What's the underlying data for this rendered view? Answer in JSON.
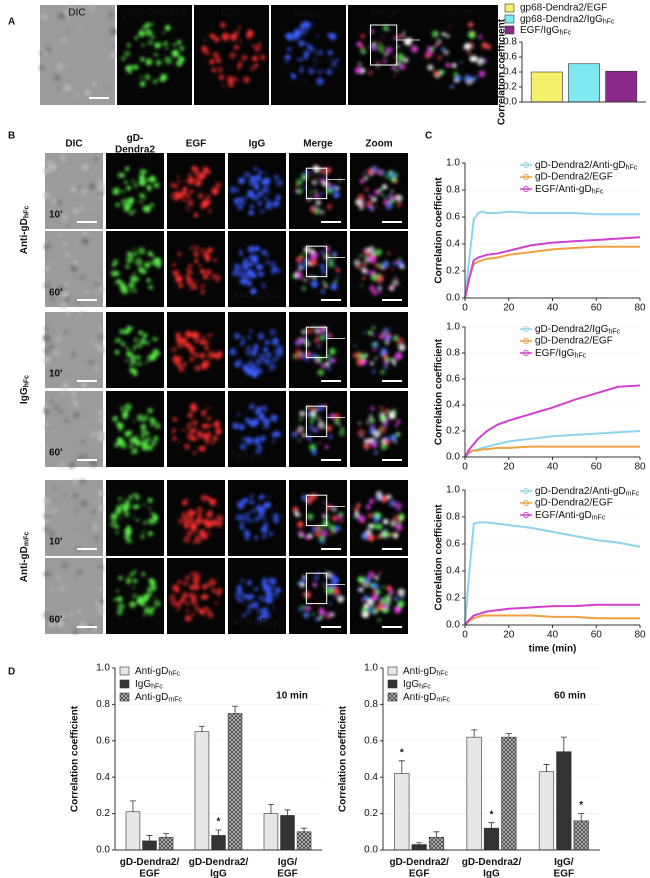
{
  "panel_labels": [
    "A",
    "B",
    "C",
    "D"
  ],
  "figure_a": {
    "image_labels": [
      "DIC",
      "gp68-Dendra2",
      "EGF",
      {
        "text": "IgG",
        "sub": "hFc"
      },
      "Merge",
      "Zoom"
    ]
  },
  "figure_b": {
    "column_labels": [
      "DIC",
      [
        "gD-",
        "Dendra2"
      ],
      "EGF",
      "IgG",
      "Merge",
      "Zoom"
    ],
    "groups": [
      {
        "label": {
          "text": "Anti-gD",
          "sub": "hFc"
        },
        "times": [
          "10'",
          "60'"
        ],
        "inset": {
          "text": "Anti-gD",
          "sub": "hFc"
        }
      },
      {
        "label": {
          "text": "IgG",
          "sub": "hFc"
        },
        "times": [
          "10'",
          "60'"
        ],
        "inset": {
          "text": "IgG",
          "sub": "hFc"
        }
      },
      {
        "label": {
          "text": "Anti-gD",
          "sub": "mFc"
        },
        "times": [
          "10'",
          "60'"
        ],
        "inset": {
          "text": "Anti-gD",
          "sub": "mFc"
        }
      }
    ]
  },
  "chart_data": [
    {
      "type": "bar",
      "ylabel": "Correlation coefficient",
      "ylim": [
        0,
        0.8
      ],
      "yticks": [
        {
          "value": 0,
          "label": "0.0"
        },
        0.2,
        0.4,
        0.6,
        0.8
      ],
      "series": [
        {
          "name": "gp68-Dendra2/EGF",
          "color": "#f5f06a",
          "values": [
            0.4
          ]
        },
        {
          "name": {
            "text": "gp68-Dendra2/IgG",
            "sub": "hFc"
          },
          "color": "#7fe8f0",
          "values": [
            0.51
          ]
        },
        {
          "name": {
            "text": "EGF/IgG",
            "sub": "hFc"
          },
          "color": "#8a2a8a",
          "values": [
            0.41
          ]
        }
      ]
    },
    {
      "type": "line",
      "ylabel": "Correlation coefficient",
      "xlim": [
        0,
        80
      ],
      "xticks": [
        0,
        20,
        40,
        60,
        80
      ],
      "ylim": [
        0,
        1
      ],
      "yticks": [
        {
          "value": 0,
          "label": "0.0"
        },
        0.2,
        0.4,
        0.6,
        0.8,
        {
          "value": 1,
          "label": "1.0"
        }
      ],
      "grid": true,
      "x": [
        0,
        2,
        4,
        6,
        8,
        10,
        15,
        20,
        30,
        40,
        50,
        60,
        70,
        80
      ],
      "series": [
        {
          "name": {
            "text": "gD-Dendra2/Anti-gD",
            "sub": "hFc"
          },
          "color": "#8fd3ee",
          "values": [
            0,
            0.3,
            0.58,
            0.63,
            0.64,
            0.63,
            0.63,
            0.64,
            0.63,
            0.63,
            0.63,
            0.62,
            0.62,
            0.62
          ]
        },
        {
          "name": "gD-Dendra2/EGF",
          "color": "#f0a040",
          "values": [
            0,
            0.15,
            0.25,
            0.27,
            0.28,
            0.29,
            0.3,
            0.32,
            0.34,
            0.36,
            0.37,
            0.38,
            0.38,
            0.38
          ]
        },
        {
          "name": {
            "text": "EGF/Anti-gD",
            "sub": "hFc"
          },
          "color": "#d040d0",
          "values": [
            0,
            0.15,
            0.28,
            0.3,
            0.31,
            0.32,
            0.33,
            0.35,
            0.39,
            0.41,
            0.42,
            0.43,
            0.44,
            0.45
          ]
        }
      ]
    },
    {
      "type": "line",
      "ylabel": "Correlation coefficient",
      "xlim": [
        0,
        80
      ],
      "xticks": [
        0,
        20,
        40,
        60,
        80
      ],
      "ylim": [
        0,
        1
      ],
      "yticks": [
        {
          "value": 0,
          "label": "0.0"
        },
        0.2,
        0.4,
        0.6,
        0.8,
        {
          "value": 1,
          "label": "1.0"
        }
      ],
      "grid": true,
      "x": [
        0,
        2,
        4,
        6,
        8,
        10,
        15,
        20,
        30,
        40,
        50,
        60,
        70,
        80
      ],
      "series": [
        {
          "name": {
            "text": "gD-Dendra2/IgG",
            "sub": "hFc"
          },
          "color": "#8fd3ee",
          "values": [
            0,
            0.03,
            0.05,
            0.06,
            0.07,
            0.08,
            0.1,
            0.12,
            0.14,
            0.16,
            0.17,
            0.18,
            0.19,
            0.2
          ]
        },
        {
          "name": "gD-Dendra2/EGF",
          "color": "#f0a040",
          "values": [
            0,
            0.04,
            0.05,
            0.05,
            0.06,
            0.06,
            0.07,
            0.07,
            0.08,
            0.08,
            0.08,
            0.08,
            0.08,
            0.08
          ]
        },
        {
          "name": {
            "text": "EGF/IgG",
            "sub": "hFc"
          },
          "color": "#d040d0",
          "values": [
            0,
            0.06,
            0.1,
            0.14,
            0.17,
            0.2,
            0.25,
            0.28,
            0.33,
            0.38,
            0.44,
            0.49,
            0.54,
            0.55
          ]
        }
      ]
    },
    {
      "type": "line",
      "ylabel": "Correlation coefficient",
      "xlabel": "time (min)",
      "xlim": [
        0,
        80
      ],
      "xticks": [
        0,
        20,
        40,
        60,
        80
      ],
      "ylim": [
        0,
        1
      ],
      "yticks": [
        {
          "value": 0,
          "label": "0.0"
        },
        0.2,
        0.4,
        0.6,
        0.8,
        {
          "value": 1,
          "label": "1.0"
        }
      ],
      "grid": true,
      "x": [
        0,
        2,
        4,
        6,
        8,
        10,
        15,
        20,
        30,
        40,
        50,
        60,
        70,
        80
      ],
      "series": [
        {
          "name": {
            "text": "gD-Dendra2/Anti-gD",
            "sub": "mFc"
          },
          "color": "#8fd3ee",
          "values": [
            0,
            0.4,
            0.75,
            0.76,
            0.76,
            0.76,
            0.75,
            0.74,
            0.72,
            0.69,
            0.66,
            0.63,
            0.61,
            0.58
          ]
        },
        {
          "name": "gD-Dendra2/EGF",
          "color": "#f0a040",
          "values": [
            0,
            0.03,
            0.05,
            0.06,
            0.07,
            0.07,
            0.07,
            0.07,
            0.07,
            0.06,
            0.06,
            0.05,
            0.05,
            0.05
          ]
        },
        {
          "name": {
            "text": "EGF/Anti-gD",
            "sub": "mFc"
          },
          "color": "#d040d0",
          "values": [
            0,
            0.04,
            0.07,
            0.08,
            0.09,
            0.1,
            0.11,
            0.12,
            0.13,
            0.14,
            0.14,
            0.15,
            0.15,
            0.15
          ]
        }
      ]
    },
    {
      "type": "bar",
      "title": "10 min",
      "ylabel": "Correlation coefficient",
      "ylim": [
        0,
        1
      ],
      "grid": true,
      "yticks": [
        {
          "value": 0,
          "label": "0.0"
        },
        0.2,
        0.4,
        0.6,
        0.8,
        {
          "value": 1,
          "label": "1.0"
        }
      ],
      "categories": [
        [
          "gD-Dendra2/",
          "EGF"
        ],
        [
          "gD-Dendra2/",
          "IgG"
        ],
        [
          "IgG/",
          "EGF"
        ]
      ],
      "series": [
        {
          "name": {
            "text": "Anti-gD",
            "sub": "hFc"
          },
          "color": "#e6e6e6",
          "values": [
            0.21,
            0.65,
            0.2
          ],
          "errors": [
            0.06,
            0.03,
            0.05
          ]
        },
        {
          "name": {
            "text": "IgG",
            "sub": "hFc"
          },
          "color": "#333333",
          "values": [
            0.05,
            0.08,
            0.19
          ],
          "errors": [
            0.03,
            0.03,
            0.03
          ]
        },
        {
          "name": {
            "text": "Anti-gD",
            "sub": "mFc"
          },
          "color": "#9a9a9a",
          "hatch": true,
          "values": [
            0.07,
            0.75,
            0.1
          ],
          "errors": [
            0.02,
            0.04,
            0.02
          ]
        }
      ],
      "annotations": [
        {
          "text": "*",
          "series": 1,
          "category": 1
        }
      ]
    },
    {
      "type": "bar",
      "title": "60 min",
      "ylabel": "Correlation coefficient",
      "ylim": [
        0,
        1
      ],
      "grid": true,
      "yticks": [
        {
          "value": 0,
          "label": "0.0"
        },
        0.2,
        0.4,
        0.6,
        0.8,
        {
          "value": 1,
          "label": "1.0"
        }
      ],
      "categories": [
        [
          "gD-Dendra2/",
          "EGF"
        ],
        [
          "gD-Dendra2/",
          "IgG"
        ],
        [
          "IgG/",
          "EGF"
        ]
      ],
      "series": [
        {
          "name": {
            "text": "Anti-gD",
            "sub": "hFc"
          },
          "color": "#e6e6e6",
          "values": [
            0.42,
            0.62,
            0.43
          ],
          "errors": [
            0.07,
            0.04,
            0.04
          ]
        },
        {
          "name": {
            "text": "IgG",
            "sub": "hFc"
          },
          "color": "#333333",
          "values": [
            0.03,
            0.12,
            0.54
          ],
          "errors": [
            0.01,
            0.03,
            0.08
          ]
        },
        {
          "name": {
            "text": "Anti-gD",
            "sub": "mFc"
          },
          "color": "#9a9a9a",
          "hatch": true,
          "values": [
            0.07,
            0.62,
            0.16
          ],
          "errors": [
            0.03,
            0.02,
            0.04
          ]
        }
      ],
      "annotations": [
        {
          "text": "*",
          "series": 0,
          "category": 0
        },
        {
          "text": "*",
          "series": 1,
          "category": 1
        },
        {
          "text": "*",
          "series": 2,
          "category": 2
        }
      ]
    }
  ]
}
